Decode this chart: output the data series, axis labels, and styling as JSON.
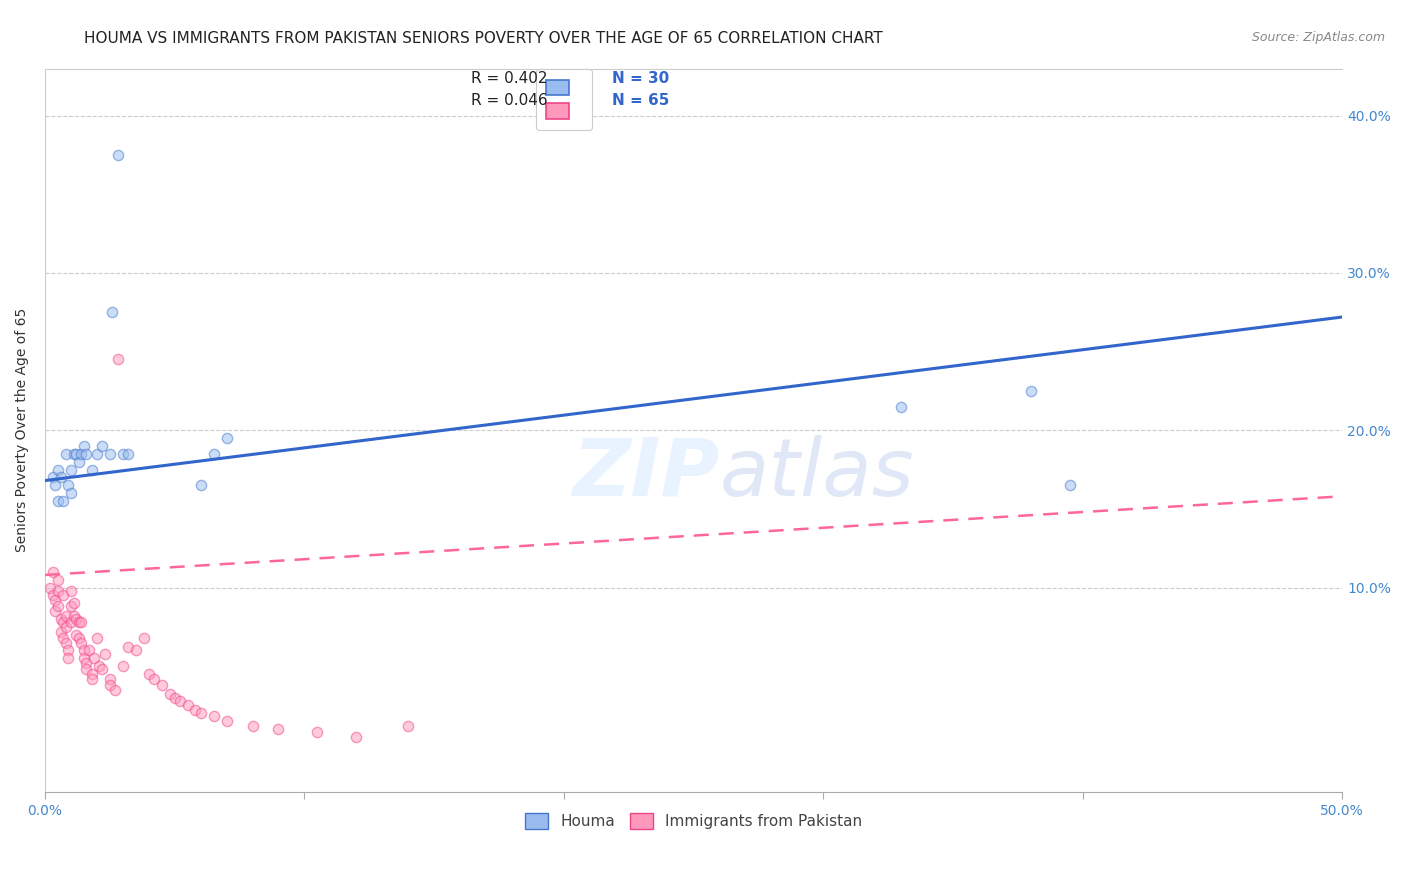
{
  "title": "HOUMA VS IMMIGRANTS FROM PAKISTAN SENIORS POVERTY OVER THE AGE OF 65 CORRELATION CHART",
  "source": "Source: ZipAtlas.com",
  "ylabel": "Seniors Poverty Over the Age of 65",
  "xlim": [
    0,
    0.5
  ],
  "ylim": [
    -0.03,
    0.43
  ],
  "watermark": "ZIPatlas",
  "legend_houma_R": "R = 0.402",
  "legend_houma_N": "N = 30",
  "legend_pak_R": "R = 0.046",
  "legend_pak_N": "N = 65",
  "houma_face_color": "#99BBEE",
  "houma_edge_color": "#4477CC",
  "pak_face_color": "#FF99BB",
  "pak_edge_color": "#EE4488",
  "houma_line_color": "#3366CC",
  "pak_line_color": "#FF6699",
  "grid_color": "#CCCCCC",
  "background_color": "#FFFFFF",
  "houma_scatter_x": [
    0.003,
    0.004,
    0.005,
    0.005,
    0.006,
    0.007,
    0.008,
    0.009,
    0.01,
    0.01,
    0.011,
    0.012,
    0.013,
    0.014,
    0.015,
    0.016,
    0.018,
    0.02,
    0.022,
    0.025,
    0.026,
    0.028,
    0.03,
    0.032,
    0.06,
    0.065,
    0.07,
    0.33,
    0.38,
    0.395
  ],
  "houma_scatter_y": [
    0.17,
    0.165,
    0.155,
    0.175,
    0.17,
    0.155,
    0.185,
    0.165,
    0.175,
    0.16,
    0.185,
    0.185,
    0.18,
    0.185,
    0.19,
    0.185,
    0.175,
    0.185,
    0.19,
    0.185,
    0.275,
    0.375,
    0.185,
    0.185,
    0.165,
    0.185,
    0.195,
    0.215,
    0.225,
    0.165
  ],
  "pak_scatter_x": [
    0.002,
    0.003,
    0.003,
    0.004,
    0.004,
    0.005,
    0.005,
    0.005,
    0.006,
    0.006,
    0.007,
    0.007,
    0.007,
    0.008,
    0.008,
    0.008,
    0.009,
    0.009,
    0.01,
    0.01,
    0.01,
    0.011,
    0.011,
    0.012,
    0.012,
    0.013,
    0.013,
    0.014,
    0.014,
    0.015,
    0.015,
    0.016,
    0.016,
    0.017,
    0.018,
    0.018,
    0.019,
    0.02,
    0.021,
    0.022,
    0.023,
    0.025,
    0.025,
    0.027,
    0.028,
    0.03,
    0.032,
    0.035,
    0.038,
    0.04,
    0.042,
    0.045,
    0.048,
    0.05,
    0.052,
    0.055,
    0.058,
    0.06,
    0.065,
    0.07,
    0.08,
    0.09,
    0.105,
    0.12,
    0.14
  ],
  "pak_scatter_y": [
    0.1,
    0.11,
    0.095,
    0.085,
    0.092,
    0.105,
    0.098,
    0.088,
    0.08,
    0.072,
    0.095,
    0.078,
    0.068,
    0.082,
    0.075,
    0.065,
    0.06,
    0.055,
    0.078,
    0.088,
    0.098,
    0.09,
    0.082,
    0.08,
    0.07,
    0.078,
    0.068,
    0.078,
    0.065,
    0.06,
    0.055,
    0.052,
    0.048,
    0.06,
    0.045,
    0.042,
    0.055,
    0.068,
    0.05,
    0.048,
    0.058,
    0.042,
    0.038,
    0.035,
    0.245,
    0.05,
    0.062,
    0.06,
    0.068,
    0.045,
    0.042,
    0.038,
    0.032,
    0.03,
    0.028,
    0.025,
    0.022,
    0.02,
    0.018,
    0.015,
    0.012,
    0.01,
    0.008,
    0.005,
    0.012
  ],
  "houma_trend_x": [
    0.0,
    0.5
  ],
  "houma_trend_y": [
    0.168,
    0.272
  ],
  "pak_trend_x": [
    0.0,
    0.5
  ],
  "pak_trend_y": [
    0.108,
    0.158
  ],
  "title_fontsize": 11,
  "axis_label_fontsize": 10,
  "tick_fontsize": 10,
  "legend_fontsize": 11,
  "scatter_size": 55,
  "scatter_alpha": 0.5,
  "scatter_linewidth": 1.0
}
